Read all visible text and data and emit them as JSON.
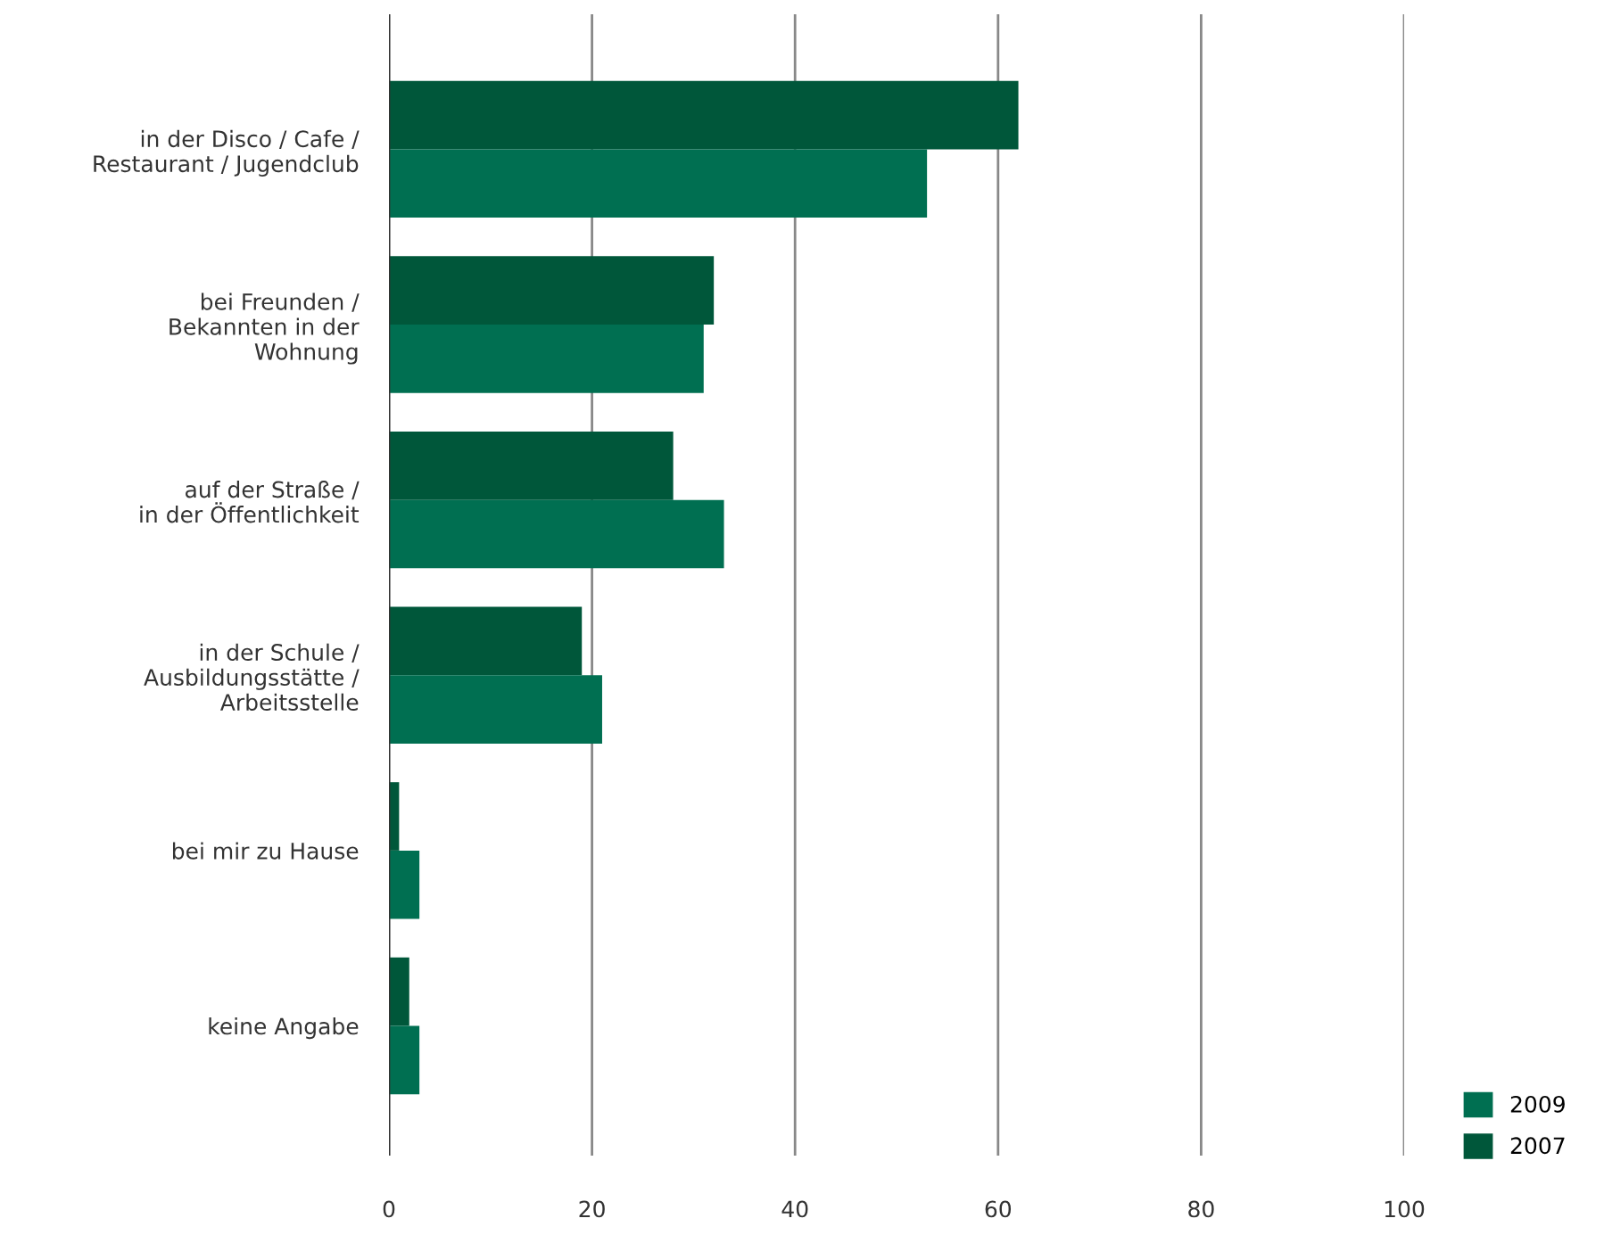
{
  "chart_data": {
    "type": "bar",
    "orientation": "horizontal",
    "categories": [
      "in der Disco / Cafe /\nRestaurant / Jugendclub",
      "bei Freunden /\nBekannten in der\nWohnung",
      "auf der Straße /\nin der Öffentlichkeit",
      "in der Schule /\nAusbildungsstätte /\nArbeitsstelle",
      "bei mir zu Hause",
      "keine Angabe"
    ],
    "series": [
      {
        "name": "2007",
        "color": "#00573a",
        "values": [
          62,
          32,
          28,
          19,
          1,
          2
        ]
      },
      {
        "name": "2009",
        "color": "#006f51",
        "values": [
          53,
          31,
          33,
          21,
          3,
          3
        ]
      }
    ],
    "xlim": [
      0,
      100
    ],
    "xticks": [
      0,
      20,
      40,
      60,
      80,
      100
    ],
    "grid": "x",
    "legend": "bottom right"
  }
}
